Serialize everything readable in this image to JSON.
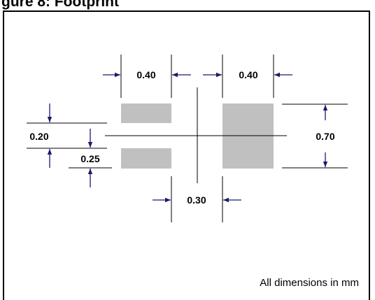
{
  "header": {
    "title": "gure 8: Footprint"
  },
  "diagram": {
    "pad_color": "#c0c0c0",
    "arrow_color": "#1a1a6e",
    "dimensions": {
      "pad_width_left": "0.40",
      "pad_width_right": "0.40",
      "gap": "0.30",
      "pad_height_small": "0.20",
      "slot": "0.25",
      "pad_height_large": "0.70"
    },
    "note": "All dimensions in mm"
  }
}
